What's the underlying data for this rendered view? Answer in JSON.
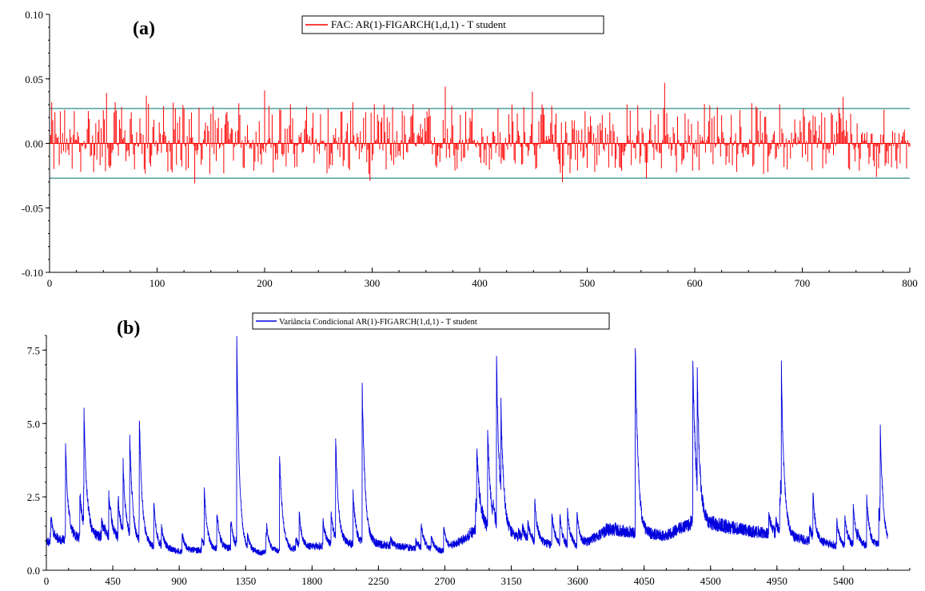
{
  "chart_data": [
    {
      "id": "a",
      "type": "line",
      "panel_label": "(a)",
      "legend": "FAC: AR(1)-FIGARCH(1,d,1) - T student",
      "series_color": "#ff0000",
      "band_color": "#2e8b8b",
      "xlim": [
        0,
        800
      ],
      "ylim": [
        -0.1,
        0.1
      ],
      "x_ticks": [
        0,
        100,
        200,
        300,
        400,
        500,
        600,
        700,
        800
      ],
      "y_ticks": [
        "-0.10",
        "-0.05",
        "0.00",
        "0.05",
        "0.10"
      ],
      "y_tick_values": [
        -0.1,
        -0.05,
        0.0,
        0.05,
        0.1
      ],
      "confidence_band": [
        -0.027,
        0.027
      ],
      "n_lags": 800,
      "spikes": [
        {
          "x": 53,
          "y": 0.039
        },
        {
          "x": 90,
          "y": 0.037
        },
        {
          "x": 135,
          "y": -0.031
        },
        {
          "x": 200,
          "y": 0.041
        },
        {
          "x": 298,
          "y": -0.029
        },
        {
          "x": 368,
          "y": 0.044
        },
        {
          "x": 449,
          "y": 0.04
        },
        {
          "x": 477,
          "y": -0.03
        },
        {
          "x": 555,
          "y": -0.027
        },
        {
          "x": 572,
          "y": 0.047
        },
        {
          "x": 738,
          "y": 0.036
        },
        {
          "x": 769,
          "y": -0.026
        }
      ]
    },
    {
      "id": "b",
      "type": "line",
      "panel_label": "(b)",
      "legend": "Variância Condicional AR(1)-FIGARCH(1,d,1) - T student",
      "series_color": "#0000dd",
      "xlim": [
        0,
        5850
      ],
      "ylim": [
        0,
        8
      ],
      "x_ticks": [
        0,
        450,
        900,
        1350,
        1800,
        2250,
        2700,
        3150,
        3600,
        4050,
        4500,
        4950,
        5400
      ],
      "y_ticks": [
        "0.0",
        "2.5",
        "5.0",
        "7.5"
      ],
      "y_tick_values": [
        0,
        2.5,
        5.0,
        7.5
      ],
      "n_obs": 5700,
      "spikes": [
        {
          "x": 130,
          "y": 4.2
        },
        {
          "x": 255,
          "y": 5.3
        },
        {
          "x": 520,
          "y": 3.6
        },
        {
          "x": 565,
          "y": 4.6
        },
        {
          "x": 630,
          "y": 5.1
        },
        {
          "x": 1070,
          "y": 2.8
        },
        {
          "x": 1290,
          "y": 7.9
        },
        {
          "x": 1580,
          "y": 3.9
        },
        {
          "x": 1960,
          "y": 4.4
        },
        {
          "x": 2140,
          "y": 6.2
        },
        {
          "x": 2990,
          "y": 4.8
        },
        {
          "x": 3050,
          "y": 7.2
        },
        {
          "x": 3080,
          "y": 5.6
        },
        {
          "x": 3990,
          "y": 7.6
        },
        {
          "x": 4380,
          "y": 7.2
        },
        {
          "x": 4410,
          "y": 6.6
        },
        {
          "x": 4980,
          "y": 6.9
        },
        {
          "x": 5650,
          "y": 4.8
        }
      ]
    }
  ]
}
